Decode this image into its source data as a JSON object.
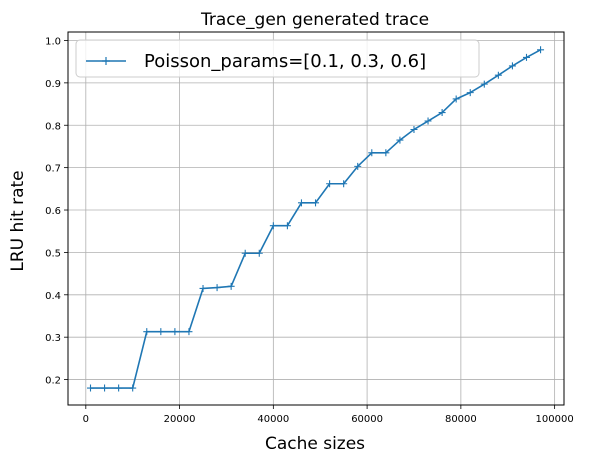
{
  "chart_data": {
    "type": "line",
    "title": "Trace_gen generated trace",
    "xlabel": "Cache sizes",
    "ylabel": "LRU hit rate",
    "xlim": [
      -3800,
      102000
    ],
    "ylim": [
      0.14,
      1.02
    ],
    "x_ticks": [
      0,
      20000,
      40000,
      60000,
      80000,
      100000
    ],
    "y_ticks": [
      0.2,
      0.3,
      0.4,
      0.5,
      0.6,
      0.7,
      0.8,
      0.9,
      1.0
    ],
    "x_tick_labels": [
      "0",
      "20000",
      "40000",
      "60000",
      "80000",
      "100000"
    ],
    "y_tick_labels": [
      "0.2",
      "0.3",
      "0.4",
      "0.5",
      "0.6",
      "0.7",
      "0.8",
      "0.9",
      "1.0"
    ],
    "grid": true,
    "legend_position": "top-left",
    "color": "#1f77b4",
    "marker": "plus",
    "series": [
      {
        "name": "Poisson_params=[0.1, 0.3, 0.6]",
        "x": [
          1000,
          4000,
          7000,
          10000,
          13000,
          16000,
          19000,
          22000,
          25000,
          28000,
          31000,
          34000,
          37000,
          40000,
          43000,
          46000,
          49000,
          52000,
          55000,
          58000,
          61000,
          64000,
          67000,
          70000,
          73000,
          76000,
          79000,
          82000,
          85000,
          88000,
          91000,
          94000,
          97000
        ],
        "y": [
          0.18,
          0.18,
          0.18,
          0.18,
          0.313,
          0.313,
          0.313,
          0.313,
          0.415,
          0.417,
          0.42,
          0.498,
          0.498,
          0.563,
          0.563,
          0.617,
          0.617,
          0.662,
          0.662,
          0.703,
          0.735,
          0.735,
          0.765,
          0.79,
          0.81,
          0.83,
          0.862,
          0.877,
          0.897,
          0.918,
          0.94,
          0.96,
          0.978
        ]
      }
    ]
  }
}
